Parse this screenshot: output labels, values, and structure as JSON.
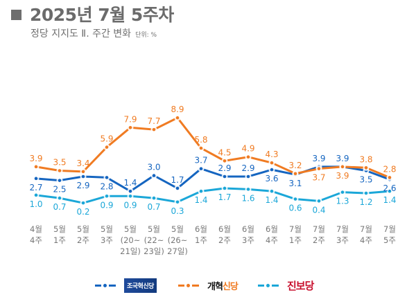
{
  "header": {
    "title": "2025년 7월 5주차",
    "subtitle": "정당 지지도 Ⅱ. 주간 변화",
    "unit": "단위: %"
  },
  "legend": [
    {
      "name": "조국혁신당",
      "color": "#1565c0",
      "label_prefix": "",
      "label_accent": ""
    },
    {
      "name": "개혁신당",
      "color": "#f07b22",
      "label_prefix": "개혁",
      "label_accent": "신당"
    },
    {
      "name": "진보당",
      "color": "#1ba7d8",
      "label_prefix": "",
      "label_accent": ""
    }
  ],
  "chart_data": {
    "type": "line",
    "title": "정당 지지도 Ⅱ. 주간 변화",
    "xlabel": "",
    "ylabel": "단위: %",
    "grid": false,
    "legend_position": "bottom",
    "ylim": [
      0,
      9
    ],
    "categories": [
      [
        "4월",
        "4주"
      ],
      [
        "5월",
        "1주"
      ],
      [
        "5월",
        "2주"
      ],
      [
        "5월",
        "3주"
      ],
      [
        "5월",
        "(20~",
        "21일)"
      ],
      [
        "5월",
        "(22~",
        "23일)"
      ],
      [
        "5월",
        "(26~",
        "27일)"
      ],
      [
        "6월",
        "1주"
      ],
      [
        "6월",
        "2주"
      ],
      [
        "6월",
        "3주"
      ],
      [
        "6월",
        "4주"
      ],
      [
        "7월",
        "1주"
      ],
      [
        "7월",
        "2주"
      ],
      [
        "7월",
        "3주"
      ],
      [
        "7월",
        "4주"
      ],
      [
        "7월",
        "5주"
      ]
    ],
    "series": [
      {
        "name": "개혁신당",
        "color": "#f07b22",
        "values": [
          3.9,
          3.5,
          3.4,
          5.9,
          7.9,
          7.7,
          8.9,
          5.8,
          4.5,
          4.9,
          4.3,
          3.2,
          3.7,
          3.9,
          3.8,
          2.8
        ],
        "label_pos": [
          "above",
          "above",
          "above",
          "above",
          "above",
          "above",
          "above",
          "above",
          "above",
          "above",
          "above",
          "above",
          "below",
          "below",
          "above",
          "above"
        ]
      },
      {
        "name": "조국혁신당",
        "color": "#1565c0",
        "values": [
          2.7,
          2.5,
          2.9,
          2.8,
          1.4,
          3.0,
          1.7,
          3.7,
          2.9,
          2.9,
          3.6,
          3.1,
          3.9,
          3.9,
          3.5,
          2.6
        ],
        "label_pos": [
          "below",
          "below",
          "below",
          "below",
          "above",
          "above",
          "above",
          "above",
          "above",
          "above",
          "below",
          "below",
          "above",
          "above",
          "below",
          "below"
        ]
      },
      {
        "name": "진보당",
        "color": "#1ba7d8",
        "values": [
          1.0,
          0.7,
          0.2,
          0.9,
          0.9,
          0.7,
          0.3,
          1.4,
          1.7,
          1.6,
          1.4,
          0.6,
          0.4,
          1.3,
          1.2,
          1.4
        ],
        "label_pos": [
          "below",
          "below",
          "below",
          "below",
          "below",
          "below",
          "below",
          "below",
          "below",
          "below",
          "below",
          "below",
          "below",
          "below",
          "below",
          "below"
        ]
      }
    ]
  }
}
